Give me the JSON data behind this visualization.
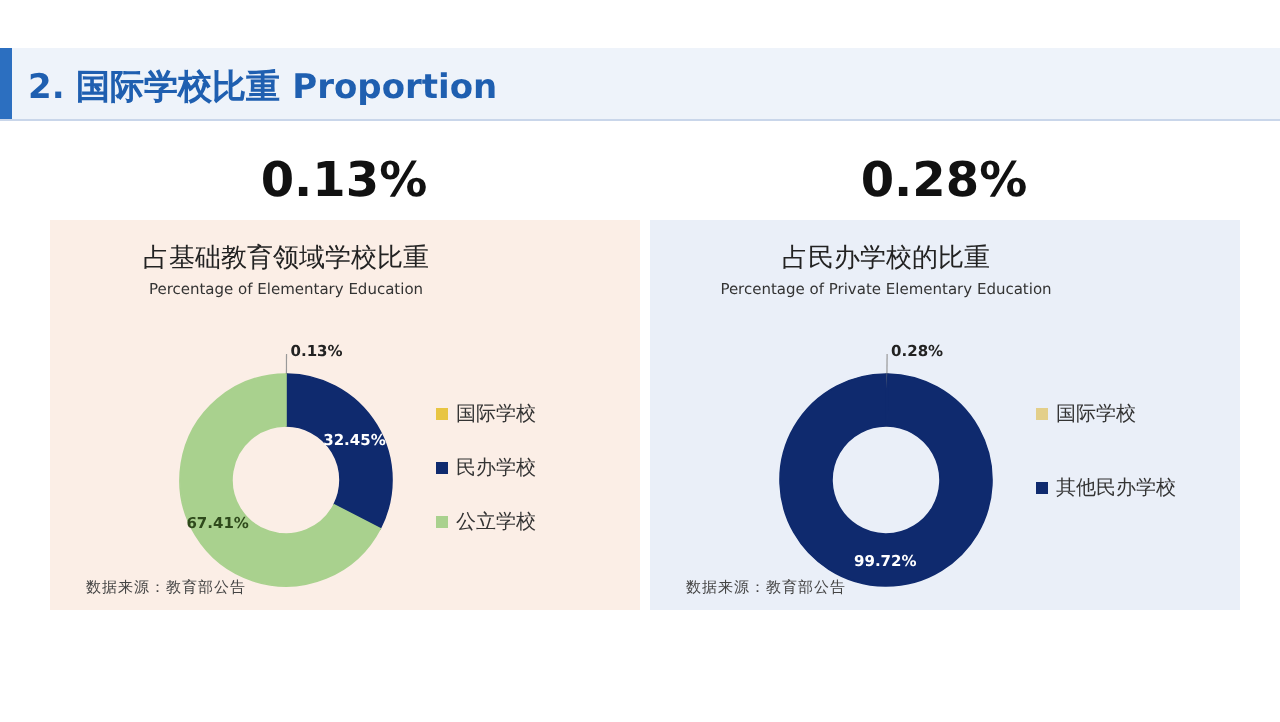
{
  "chart_data": [
    {
      "type": "donut",
      "title": "占基础教育领域学校比重",
      "subtitle": "Percentage of Elementary Education",
      "categories": [
        "国际学校",
        "民办学校",
        "公立学校"
      ],
      "values": [
        0.13,
        32.45,
        67.41
      ],
      "colors": [
        "#e8c542",
        "#0f2a6e",
        "#a9d18e"
      ],
      "value_labels": [
        "0.13%",
        "32.45%",
        "67.41%"
      ],
      "legend": "right",
      "annotations": [
        "2. 国际学校比重  Proportion",
        "0.13%",
        "数据来源：教育部公告"
      ]
    },
    {
      "type": "donut",
      "title": "占民办学校的比重",
      "subtitle": "Percentage of Private Elementary Education",
      "categories": [
        "国际学校",
        "其他民办学校"
      ],
      "values": [
        0.28,
        99.72
      ],
      "colors": [
        "#e3cf8a",
        "#0f2a6e"
      ],
      "value_labels": [
        "0.28%",
        "99.72%"
      ],
      "legend": "right",
      "annotations": [
        "0.28%",
        "数据来源：教育部公告"
      ]
    }
  ]
}
